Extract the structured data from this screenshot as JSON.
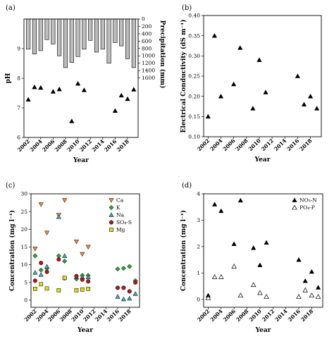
{
  "panels": [
    {
      "label": "(a)",
      "chart_data": {
        "type": "scatter",
        "xlabel": "Year",
        "ylabel": "pH",
        "xlim": [
          2001.3,
          2019.7
        ],
        "ylim": [
          6,
          10
        ],
        "xticks": [
          2002,
          2004,
          2006,
          2008,
          2010,
          2012,
          2014,
          2016,
          2018
        ],
        "yticks": [
          6,
          7,
          8,
          9
        ],
        "series": [
          {
            "marker": "triangle-filled",
            "x": [
              2002,
              2003,
              2004,
              2006,
              2007,
              2009,
              2010,
              2011,
              2016,
              2017,
              2018,
              2019
            ],
            "y": [
              7.28,
              7.7,
              7.68,
              7.55,
              7.63,
              6.55,
              7.82,
              7.6,
              6.9,
              7.42,
              7.3,
              7.62
            ]
          }
        ],
        "secondary": {
          "type": "bar",
          "ylabel": "Precipitation (mm)",
          "inverted": true,
          "ylim": [
            0,
            1800
          ],
          "yticks": [
            0,
            200,
            400,
            600,
            800,
            1000,
            1200,
            1400,
            1600
          ],
          "x": [
            2002,
            2003,
            2004,
            2005,
            2006,
            2007,
            2008,
            2009,
            2010,
            2011,
            2012,
            2013,
            2014,
            2015,
            2016,
            2017,
            2018,
            2019
          ],
          "values": [
            820,
            950,
            860,
            560,
            680,
            1000,
            1320,
            1180,
            1020,
            820,
            580,
            900,
            820,
            1200,
            640,
            730,
            1080,
            1320
          ]
        }
      }
    },
    {
      "label": "(b)",
      "chart_data": {
        "type": "scatter",
        "xlabel": "Year",
        "ylabel": "Electrical Conductivity (dS m⁻¹)",
        "xlim": [
          2001.3,
          2019.7
        ],
        "ylim": [
          0.1,
          0.4
        ],
        "xticks": [
          2002,
          2004,
          2006,
          2008,
          2010,
          2012,
          2014,
          2016,
          2018
        ],
        "yticks": [
          0.1,
          0.15,
          0.2,
          0.25,
          0.3,
          0.35,
          0.4
        ],
        "ytick_labels": [
          "0.10",
          "0.15",
          "0.20",
          "0.25",
          "0.30",
          "0.35",
          "0.40"
        ],
        "series": [
          {
            "marker": "triangle-filled",
            "x": [
              2002,
              2003,
              2004,
              2006,
              2007,
              2009,
              2010,
              2011,
              2016,
              2017,
              2018,
              2019
            ],
            "y": [
              0.15,
              0.35,
              0.2,
              0.23,
              0.32,
              0.17,
              0.29,
              0.21,
              0.25,
              0.18,
              0.2,
              0.17
            ]
          }
        ]
      }
    },
    {
      "label": "(c)",
      "chart_data": {
        "type": "scatter",
        "xlabel": "Year",
        "ylabel": "Concentration (mg l⁻¹)",
        "xlim": [
          2001.3,
          2019.7
        ],
        "ylim": [
          -2,
          30
        ],
        "xticks": [
          2002,
          2004,
          2006,
          2008,
          2010,
          2012,
          2014,
          2016,
          2018
        ],
        "yticks": [
          0,
          5,
          10,
          15,
          20,
          25,
          30
        ],
        "legend_position": "top-right",
        "series": [
          {
            "name": "Ca",
            "marker": "triangle-down",
            "color": "#f08a3c",
            "x": [
              2002,
              2003,
              2004,
              2006,
              2007,
              2009,
              2010,
              2011
            ],
            "y": [
              14.5,
              27,
              19,
              24,
              28.2,
              16.5,
              13,
              15
            ]
          },
          {
            "name": "K",
            "marker": "diamond",
            "color": "#2e9e3a",
            "x": [
              2002,
              2003,
              2004,
              2006,
              2007,
              2009,
              2010,
              2011,
              2016,
              2017,
              2018,
              2019
            ],
            "y": [
              12.5,
              8.5,
              9,
              12.5,
              11,
              6,
              7,
              7,
              8.8,
              9,
              9.5,
              5.5
            ]
          },
          {
            "name": "Na",
            "marker": "triangle-up",
            "color": "#4aa0a8",
            "x": [
              2002,
              2003,
              2004,
              2006,
              2007,
              2009,
              2010,
              2011,
              2016,
              2017,
              2018,
              2019
            ],
            "y": [
              7.8,
              7.2,
              9.5,
              23.5,
              12.5,
              6.5,
              6.5,
              6.5,
              1,
              0.3,
              0.5,
              1.8
            ]
          },
          {
            "name": "SO₄-S",
            "marker": "circle",
            "color": "#b01818",
            "x": [
              2002,
              2003,
              2004,
              2006,
              2007,
              2009,
              2010,
              2011,
              2016,
              2017,
              2018,
              2019
            ],
            "y": [
              5.5,
              10.5,
              8,
              11.5,
              6.2,
              6.8,
              5.8,
              5.3,
              3.5,
              3.5,
              2.5,
              5
            ]
          },
          {
            "name": "Mg",
            "marker": "square",
            "color": "#e0d81e",
            "x": [
              2002,
              2003,
              2004,
              2006,
              2007,
              2009,
              2010,
              2011
            ],
            "y": [
              3.2,
              4.5,
              3.3,
              2.8,
              6.3,
              2.8,
              3,
              3.2
            ]
          }
        ]
      }
    },
    {
      "label": "(d)",
      "chart_data": {
        "type": "scatter",
        "xlabel": "Year",
        "ylabel": "Concentration (mg l⁻¹)",
        "xlim": [
          2001.3,
          2019.7
        ],
        "ylim": [
          -0.3,
          4
        ],
        "xticks": [
          2002,
          2004,
          2006,
          2008,
          2010,
          2012,
          2014,
          2016,
          2018
        ],
        "yticks": [
          0,
          1,
          2,
          3,
          4
        ],
        "legend_position": "top-right",
        "series": [
          {
            "name": "NO₃-N",
            "marker": "triangle-filled",
            "x": [
              2002,
              2003,
              2004,
              2006,
              2007,
              2009,
              2010,
              2011,
              2016,
              2017,
              2018,
              2019
            ],
            "y": [
              0.15,
              3.6,
              3.35,
              2.1,
              3.75,
              1.95,
              1.3,
              2.15,
              1.5,
              0.7,
              1.05,
              0.45
            ]
          },
          {
            "name": "PO₄-P",
            "marker": "triangle-open",
            "x": [
              2002,
              2003,
              2004,
              2006,
              2007,
              2009,
              2010,
              2011,
              2016,
              2017,
              2018,
              2019
            ],
            "y": [
              0.05,
              0.85,
              0.85,
              1.25,
              0.15,
              0.55,
              0.25,
              0.1,
              0.1,
              0.35,
              0.15,
              0.1
            ]
          }
        ]
      }
    }
  ]
}
